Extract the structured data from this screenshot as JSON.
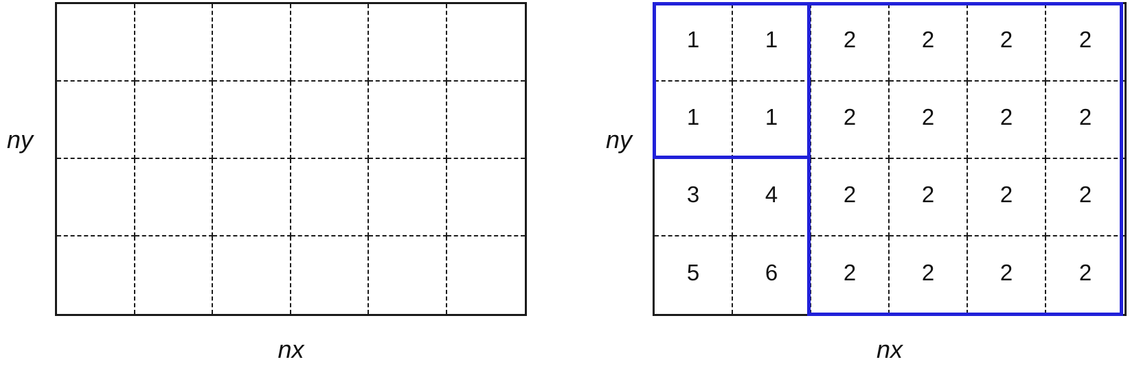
{
  "diagram": {
    "description": "Domain decomposition of a 6x4 computational grid: plain grid (left) and grid with ranked sub-domains highlighted (right)",
    "colors": {
      "line": "#1a1a1a",
      "highlight": "#2121d9",
      "background": "#ffffff"
    },
    "left_panel": {
      "y_label": "ny",
      "x_label": "nx",
      "grid": {
        "cols": 6,
        "rows": 4
      }
    },
    "right_panel": {
      "y_label": "ny",
      "x_label": "nx",
      "grid": {
        "cols": 6,
        "rows": 4
      },
      "cell_values": [
        [
          "1",
          "1",
          "2",
          "2",
          "2",
          "2"
        ],
        [
          "1",
          "1",
          "2",
          "2",
          "2",
          "2"
        ],
        [
          "3",
          "4",
          "2",
          "2",
          "2",
          "2"
        ],
        [
          "5",
          "6",
          "2",
          "2",
          "2",
          "2"
        ]
      ],
      "highlight_boxes": [
        {
          "name": "block-1",
          "col": 0,
          "row": 0,
          "col_span": 2,
          "row_span": 2
        },
        {
          "name": "block-2",
          "col": 2,
          "row": 0,
          "col_span": 4,
          "row_span": 4
        }
      ]
    }
  }
}
